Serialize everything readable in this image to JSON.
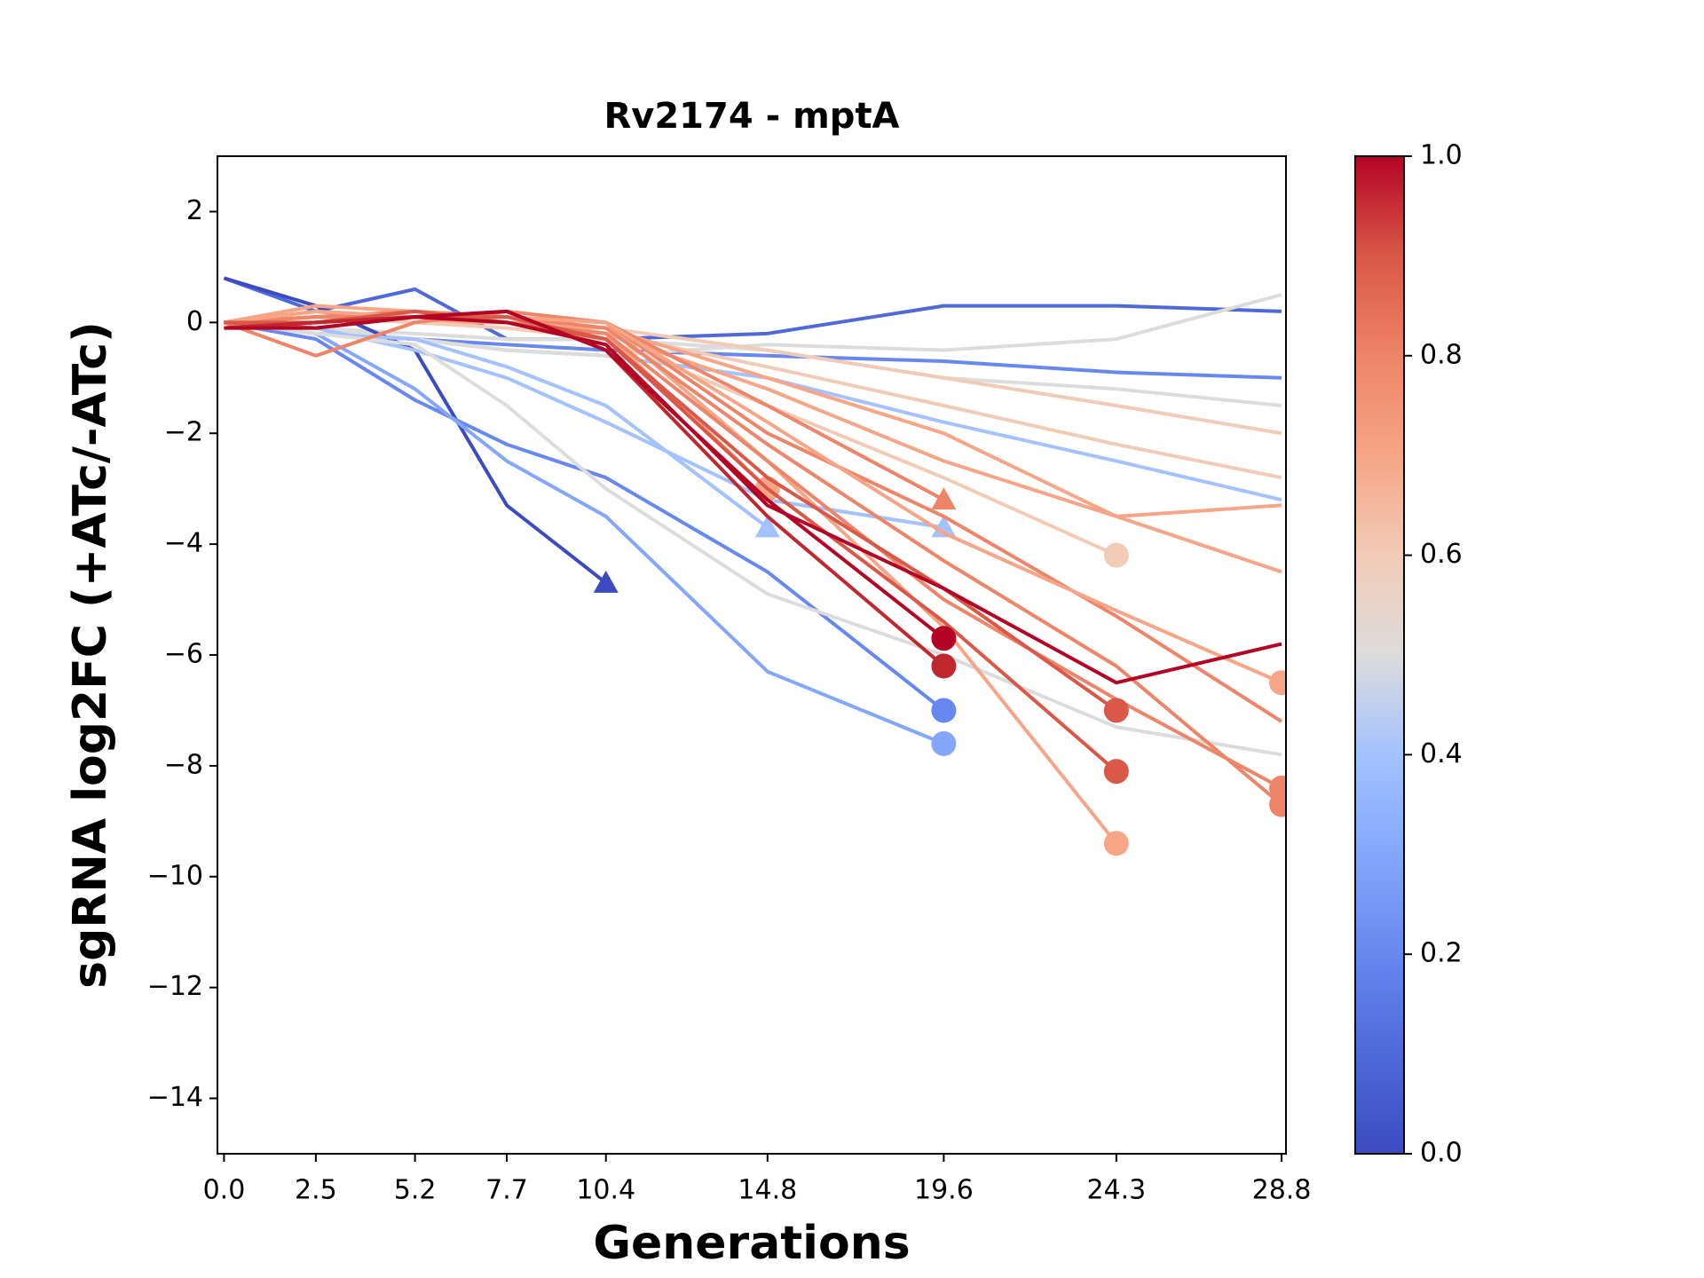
{
  "chart_data": {
    "type": "line",
    "title": "Rv2174 - mptA",
    "x_label": "Generations",
    "y_label": "sgRNA log2FC (+ATc/-ATc)",
    "x": [
      0,
      2.5,
      5.2,
      7.7,
      10.4,
      14.8,
      19.6,
      24.3,
      28.8
    ],
    "xlim": [
      -0.18,
      28.92
    ],
    "xticks": [
      {
        "value": 0,
        "label": "0.0"
      },
      2.5,
      5.2,
      7.7,
      10.4,
      14.8,
      19.6,
      24.3,
      28.8
    ],
    "ylim": [
      -15,
      3
    ],
    "yticks": [
      {
        "value": -14,
        "label": "−14"
      },
      {
        "value": -12,
        "label": "−12"
      },
      {
        "value": -10,
        "label": "−10"
      },
      {
        "value": -8,
        "label": "−8"
      },
      {
        "value": -6,
        "label": "−6"
      },
      {
        "value": -4,
        "label": "−4"
      },
      {
        "value": -2,
        "label": "−2"
      },
      0,
      2
    ],
    "colorbar": {
      "lim": [
        0,
        1
      ],
      "ticks": [
        {
          "value": 0,
          "label": "0.0"
        },
        0.2,
        0.4,
        0.6,
        0.8,
        {
          "value": 1,
          "label": "1.0"
        }
      ],
      "colors": [
        "#3b4cc0",
        "#4f69d9",
        "#6788ee",
        "#84a7fc",
        "#a3c2fe",
        "#dddcdc",
        "#f2cbb7",
        "#f6a586",
        "#ee8468",
        "#d95847",
        "#b40426"
      ]
    },
    "series": [
      {
        "color": "#4f69d9",
        "values": [
          0.8,
          0.2,
          0.6,
          -0.3,
          -0.3,
          -0.2,
          0.3,
          0.3,
          0.2
        ]
      },
      {
        "color": "#6788ee",
        "values": [
          0,
          -0.2,
          -0.3,
          -0.4,
          -0.5,
          -0.6,
          -0.7,
          -0.9,
          -1.0
        ]
      },
      {
        "color": "#a3c2fe",
        "values": [
          0,
          -0.2,
          -0.3,
          -0.5,
          -0.6,
          -1,
          -1.8,
          -2.5,
          -3.2
        ]
      },
      {
        "color": "#dddcdc",
        "values": [
          0,
          -0.1,
          -0.2,
          -0.3,
          -0.3,
          -0.5,
          -1,
          -1.2,
          -1.5
        ]
      },
      {
        "color": "#dddcdc",
        "values": [
          0,
          -0.1,
          -0.3,
          -0.5,
          -0.6,
          -0.4,
          -0.5,
          -0.3,
          0.5
        ]
      },
      {
        "color": "#f2cbb7",
        "values": [
          0,
          0.1,
          0.1,
          0,
          -0.2,
          -0.8,
          -1.5,
          -2.2,
          -2.8
        ]
      },
      {
        "color": "#f2cbb7",
        "values": [
          0,
          0.1,
          0.1,
          0,
          -0.1,
          -0.5,
          -1.0,
          -1.5,
          -2.0
        ]
      },
      {
        "color": "#f6a586",
        "values": [
          0,
          0.2,
          0,
          0,
          -0.1,
          -1,
          -2,
          -3.5,
          -4.5
        ]
      },
      {
        "color": "#f6a586",
        "values": [
          0,
          0,
          0.1,
          0,
          -0.2,
          -1.2,
          -2.5,
          -3.5,
          -3.3
        ]
      },
      {
        "color": "#3b4cc0",
        "values": [
          0.8,
          0.3,
          -0.5,
          -3.3,
          -4.7,
          null,
          null,
          null,
          null
        ],
        "marker": "^"
      },
      {
        "color": "#6788ee",
        "values": [
          0,
          -0.3,
          -1.4,
          -2.2,
          -2.8,
          -4.5,
          -7.0,
          null,
          null
        ],
        "marker": "o"
      },
      {
        "color": "#84a7fc",
        "values": [
          0,
          -0.2,
          -1.2,
          -2.5,
          -3.5,
          -6.3,
          -7.6,
          null,
          null
        ],
        "marker": "o"
      },
      {
        "color": "#a3c2fe",
        "values": [
          0,
          -0.2,
          -0.3,
          -0.8,
          -1.5,
          -3.7,
          null,
          null,
          null
        ],
        "marker": "^"
      },
      {
        "color": "#a3c2fe",
        "values": [
          0,
          -0.1,
          -0.5,
          -1.0,
          -1.8,
          -3.2,
          -3.7,
          null,
          null
        ],
        "marker": "^"
      },
      {
        "color": "#dddcdc",
        "values": [
          0,
          -0.2,
          -0.4,
          -1.5,
          -3,
          -4.9,
          -6,
          -7.3,
          -7.8
        ]
      },
      {
        "color": "#f2cbb7",
        "values": [
          0,
          0.1,
          0,
          -0.1,
          -0.3,
          -1.5,
          -2.8,
          -4.2,
          null
        ],
        "marker": "o"
      },
      {
        "color": "#f6a586",
        "values": [
          0,
          0.3,
          0.2,
          0.1,
          -0.2,
          -3,
          null,
          null,
          null
        ],
        "marker": "o"
      },
      {
        "color": "#ee8468",
        "values": [
          0,
          0.2,
          0.1,
          0.1,
          0,
          -1.5,
          -3.2,
          null,
          null
        ],
        "marker": "^"
      },
      {
        "color": "#f6a586",
        "values": [
          0,
          0.1,
          0.2,
          0.1,
          0,
          -2.5,
          -5.5,
          -9.4,
          null
        ],
        "marker": "o"
      },
      {
        "color": "#ee8468",
        "values": [
          0,
          -0.6,
          0,
          0.2,
          0,
          -2,
          -3.5,
          -5.3,
          -7.2
        ]
      },
      {
        "color": "#ee8468",
        "values": [
          0,
          0.1,
          0.1,
          0,
          -0.2,
          -2.5,
          -5,
          -6.8,
          -8.4
        ],
        "marker": "o"
      },
      {
        "color": "#ee8468",
        "values": [
          0,
          0.1,
          0.2,
          0.1,
          -0.1,
          -2.2,
          -4.3,
          -6.2,
          -8.7
        ],
        "marker": "o"
      },
      {
        "color": "#f6a586",
        "values": [
          0,
          0.2,
          0.1,
          0.1,
          0,
          -1.8,
          -3.8,
          -5.2,
          -6.5
        ],
        "marker": "o"
      },
      {
        "color": "#d95847",
        "values": [
          0,
          0,
          0.2,
          0,
          -0.3,
          -2.8,
          -4.8,
          -7.0,
          null
        ],
        "marker": "o"
      },
      {
        "color": "#d95847",
        "values": [
          0,
          -0.1,
          0.1,
          0.1,
          -0.3,
          -3.0,
          -5.4,
          -8.1,
          null
        ],
        "marker": "o"
      },
      {
        "color": "#b40426",
        "values": [
          -0.1,
          0,
          0.1,
          0,
          -0.4,
          -3.3,
          -4.8,
          -6.5,
          -5.8
        ]
      },
      {
        "color": "#c0282f",
        "values": [
          -0.1,
          0,
          0.1,
          0.2,
          -0.5,
          -3.5,
          -6.2,
          null,
          null
        ],
        "marker": "o"
      },
      {
        "color": "#b40426",
        "values": [
          -0.1,
          -0.1,
          0.1,
          0.2,
          -0.5,
          -3.2,
          -5.7,
          null,
          null
        ],
        "marker": "o"
      }
    ]
  }
}
